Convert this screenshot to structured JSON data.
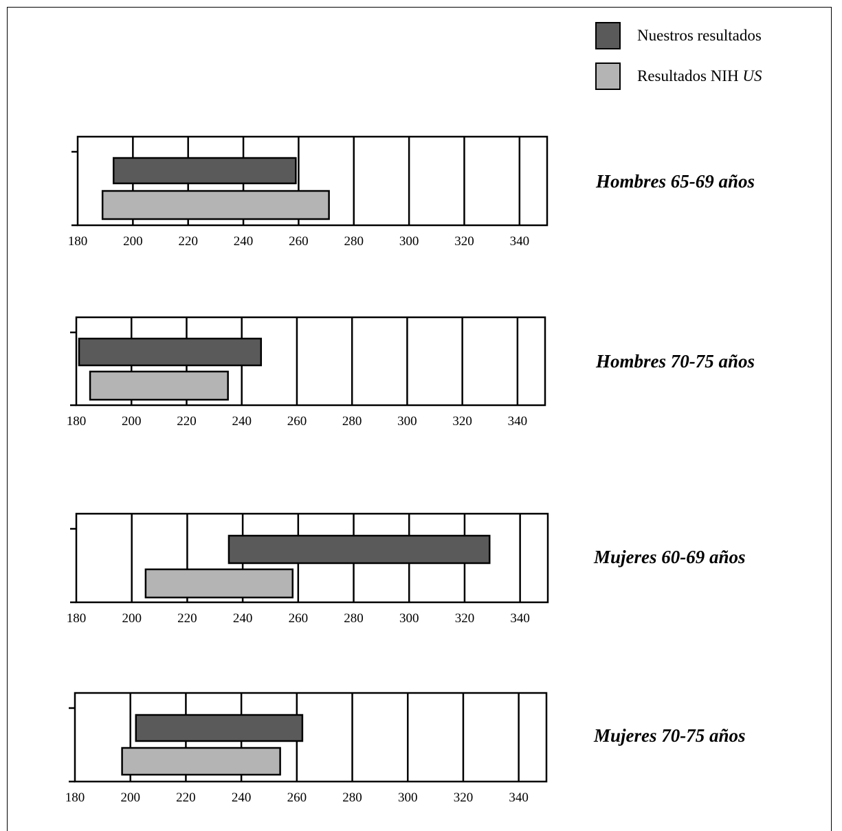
{
  "colors": {
    "nuestros": "#5a5a5a",
    "nih": "#b4b4b4",
    "ink": "#000000"
  },
  "legend": [
    {
      "series": "Nuestros resultados",
      "label": "Nuestros resultados",
      "color": "#5a5a5a"
    },
    {
      "series": "Resultados NIH US",
      "label": "Resultados NIH ",
      "label_italic": "US",
      "color": "#b4b4b4"
    }
  ],
  "chart_data": [
    {
      "type": "bar",
      "orientation": "horizontal-range",
      "title": "Hombres 65-69 años",
      "xlim": [
        180,
        350
      ],
      "xticks": [
        180,
        200,
        220,
        240,
        260,
        280,
        300,
        320,
        340
      ],
      "grid": true,
      "series": [
        {
          "name": "Nuestros resultados",
          "range": [
            193,
            259
          ]
        },
        {
          "name": "Resultados NIH US",
          "range": [
            189,
            271
          ]
        }
      ]
    },
    {
      "type": "bar",
      "orientation": "horizontal-range",
      "title": "Hombres 70-75 años",
      "xlim": [
        180,
        350
      ],
      "xticks": [
        180,
        200,
        220,
        240,
        260,
        280,
        300,
        320,
        340
      ],
      "grid": true,
      "series": [
        {
          "name": "Nuestros resultados",
          "range": [
            181,
            247
          ]
        },
        {
          "name": "Resultados NIH US",
          "range": [
            185,
            235
          ]
        }
      ]
    },
    {
      "type": "bar",
      "orientation": "horizontal-range",
      "title": "Mujeres 60-69 años",
      "xlim": [
        180,
        350
      ],
      "xticks": [
        180,
        200,
        220,
        240,
        260,
        280,
        300,
        320,
        340
      ],
      "grid": true,
      "series": [
        {
          "name": "Nuestros resultados",
          "range": [
            235,
            329
          ]
        },
        {
          "name": "Resultados NIH US",
          "range": [
            205,
            258
          ]
        }
      ]
    },
    {
      "type": "bar",
      "orientation": "horizontal-range",
      "title": "Mujeres 70-75 años",
      "xlim": [
        180,
        350
      ],
      "xticks": [
        180,
        200,
        220,
        240,
        260,
        280,
        300,
        320,
        340
      ],
      "grid": true,
      "series": [
        {
          "name": "Nuestros resultados",
          "range": [
            202,
            262
          ]
        },
        {
          "name": "Resultados NIH US",
          "range": [
            197,
            254
          ]
        }
      ]
    }
  ]
}
